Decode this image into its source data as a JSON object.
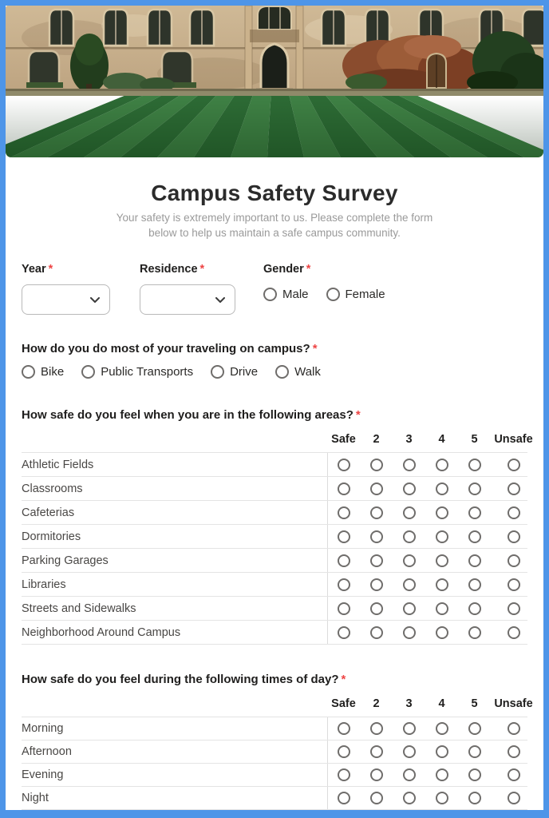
{
  "page": {
    "title": "Campus Safety Survey",
    "subtitle_line1": "Your safety is extremely important to us. Please complete the form",
    "subtitle_line2": "below to help us maintain a safe campus community."
  },
  "required_marker": "*",
  "colors": {
    "border_blue": "#4e95e8",
    "required_red": "#ee4545",
    "title_dark": "#2b2b2b",
    "subtitle_gray": "#9a9a9a",
    "row_label_gray": "#494745",
    "divider_gray": "#e4e4e4",
    "lawn_dark_green": "#2d6b35",
    "lawn_light_green": "#3f8145"
  },
  "header_image": {
    "description": "stone college building with arched windows, ivy and striped green lawn"
  },
  "fields": {
    "year": {
      "label": "Year"
    },
    "residence": {
      "label": "Residence"
    },
    "gender": {
      "label": "Gender",
      "options": [
        "Male",
        "Female"
      ]
    }
  },
  "questions": {
    "travel": {
      "label": "How do you do most of your traveling on campus?",
      "options": [
        "Bike",
        "Public Transports",
        "Drive",
        "Walk"
      ]
    },
    "areas": {
      "label": "How safe do you feel when you are in the following areas?",
      "columns": [
        "Safe",
        "2",
        "3",
        "4",
        "5",
        "Unsafe"
      ],
      "rows": [
        "Athletic Fields",
        "Classrooms",
        "Cafeterias",
        "Dormitories",
        "Parking Garages",
        "Libraries",
        "Streets and Sidewalks",
        "Neighborhood Around Campus"
      ]
    },
    "times": {
      "label": "How safe do you feel during the following times of day?",
      "columns": [
        "Safe",
        "2",
        "3",
        "4",
        "5",
        "Unsafe"
      ],
      "rows": [
        "Morning",
        "Afternoon",
        "Evening",
        "Night"
      ]
    }
  }
}
